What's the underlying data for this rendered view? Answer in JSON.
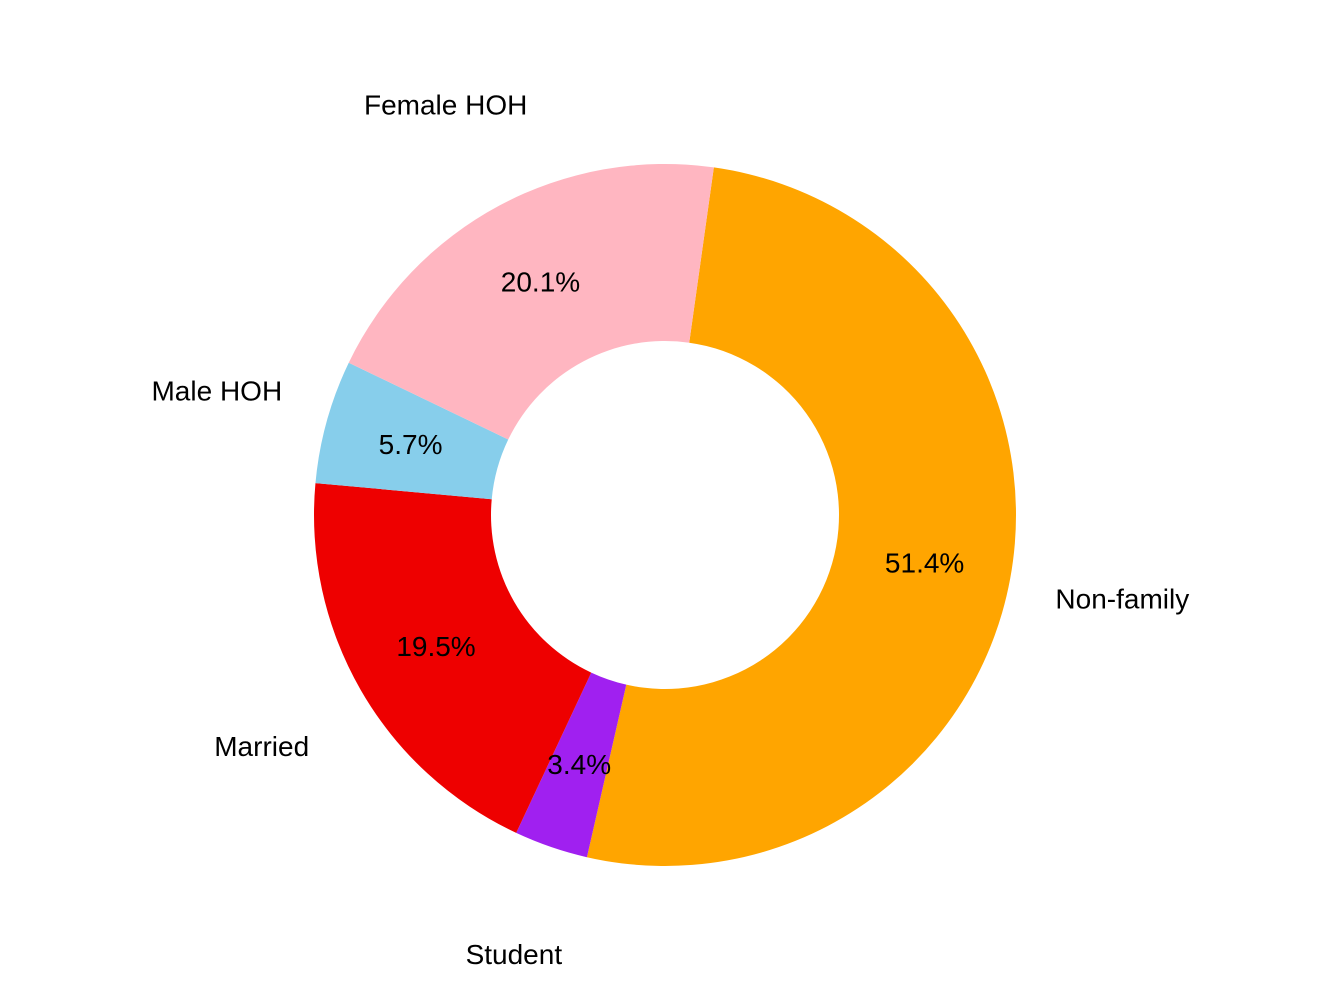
{
  "chart_data": {
    "type": "pie",
    "donut": true,
    "categories": [
      "Non-family",
      "Student",
      "Married",
      "Male HOH",
      "Female HOH"
    ],
    "values": [
      51.4,
      3.4,
      19.5,
      5.7,
      20.1
    ],
    "value_labels": [
      "51.4%",
      "3.4%",
      "19.5%",
      "5.7%",
      "20.1%"
    ],
    "colors": [
      "#ffa500",
      "#a020f0",
      "#ee0000",
      "#87ceeb",
      "#ffb6c1"
    ],
    "start_angle_deg": 82,
    "direction": "clockwise",
    "legend": "none"
  }
}
